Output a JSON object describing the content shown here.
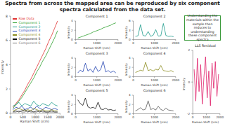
{
  "slide_title": "Spectra from across the mapped area can be reproduced by six component spectra calculated from the data set.",
  "callout": "Understanding the materials within the sample then reduces to understanding these component spectra",
  "chart_data": [
    {
      "type": "line",
      "x_label": "Raman Shift (/cm)",
      "y_label": "Intensity",
      "legend": "upper left",
      "grid": false,
      "x": [
        100,
        220,
        340,
        460,
        580,
        700,
        820,
        940,
        1060,
        1180,
        1300,
        1420,
        1540,
        1660,
        1780,
        1900
      ],
      "xlim": [
        0,
        2000
      ],
      "xticks": [
        0,
        500,
        1000,
        1500,
        2000
      ],
      "ylim": [
        0,
        8
      ],
      "yticks": [
        0,
        2,
        4,
        6,
        8
      ],
      "series": [
        {
          "name": "Raw Data",
          "color": "#e03030",
          "values": [
            0.5,
            0.8,
            1.1,
            1.5,
            1.9,
            2.4,
            2.8,
            3.3,
            3.8,
            4.3,
            4.8,
            5.3,
            5.9,
            6.4,
            7.0,
            7.6
          ]
        },
        {
          "name": "Component 1",
          "color": "#2ca02c",
          "values": [
            0.4,
            0.7,
            1.0,
            1.3,
            1.7,
            2.1,
            2.5,
            2.9,
            3.4,
            3.8,
            4.3,
            4.7,
            5.2,
            5.7,
            6.2,
            6.8
          ]
        },
        {
          "name": "Component 2",
          "color": "#1a9a8a",
          "values": [
            0.6,
            0.7,
            0.9,
            0.6,
            0.8,
            0.7,
            0.6,
            1.0,
            0.7,
            0.6,
            0.8,
            0.7,
            0.6,
            0.9,
            0.7,
            0.6
          ]
        },
        {
          "name": "Component 3",
          "color": "#2040b0",
          "values": [
            0.3,
            0.5,
            0.4,
            0.6,
            0.3,
            0.4,
            0.5,
            0.3,
            0.6,
            0.4,
            0.3,
            0.5,
            0.4,
            0.3,
            0.4,
            0.3
          ]
        },
        {
          "name": "Component 4",
          "color": "#8c8c1e",
          "values": [
            0.2,
            0.3,
            0.4,
            0.3,
            0.2,
            0.3,
            0.2,
            0.4,
            0.3,
            0.2,
            0.3,
            0.2,
            0.2,
            0.3,
            0.2,
            0.2
          ]
        },
        {
          "name": "Component 5",
          "color": "#111111",
          "values": [
            0.1,
            0.2,
            0.1,
            0.2,
            0.3,
            0.1,
            0.2,
            0.1,
            0.2,
            0.1,
            0.2,
            0.1,
            0.1,
            0.2,
            0.1,
            0.1
          ]
        },
        {
          "name": "Component 6",
          "color": "#777777",
          "values": [
            0.1,
            0.1,
            0.2,
            0.1,
            0.1,
            0.2,
            0.1,
            0.1,
            0.1,
            0.2,
            0.1,
            0.1,
            0.1,
            0.1,
            0.1,
            0.1
          ]
        }
      ]
    },
    {
      "type": "line",
      "title": "Component 1",
      "x_label": "Raman Shift (/cm)",
      "y_label": "Intensity",
      "color": "#2ca02c",
      "x": [
        100,
        220,
        340,
        460,
        580,
        700,
        820,
        940,
        1060,
        1180,
        1300,
        1420,
        1540,
        1660,
        1780,
        1900
      ],
      "values": [
        0.3,
        0.5,
        0.7,
        0.9,
        1.1,
        1.3,
        1.6,
        1.8,
        2.0,
        2.2,
        2.5,
        2.7,
        2.9,
        3.1,
        3.4,
        3.6
      ],
      "xlim": [
        0,
        2000
      ],
      "xticks": [
        0,
        1000,
        2000
      ],
      "ylim": [
        0,
        4
      ],
      "yticks": [
        0,
        2,
        4
      ]
    },
    {
      "type": "line",
      "title": "Component 2",
      "x_label": "Raman Shift (/cm)",
      "y_label": "Intensity",
      "color": "#1a9a8a",
      "x": [
        100,
        220,
        340,
        460,
        580,
        700,
        820,
        940,
        1060,
        1180,
        1300,
        1420,
        1540,
        1660,
        1780,
        1900
      ],
      "values": [
        1.0,
        1.2,
        4.8,
        1.3,
        1.1,
        2.6,
        1.0,
        1.4,
        3.2,
        1.1,
        1.2,
        5.2,
        1.3,
        1.0,
        1.1,
        0.9
      ],
      "xlim": [
        0,
        2000
      ],
      "xticks": [
        0,
        1000,
        2000
      ],
      "ylim": [
        0,
        6
      ],
      "yticks": [
        0,
        3,
        6
      ]
    },
    {
      "type": "line",
      "title": "Component 3",
      "x_label": "Raman Shift (/cm)",
      "y_label": "Intensity",
      "color": "#2040b0",
      "x": [
        100,
        220,
        340,
        460,
        580,
        700,
        820,
        940,
        1060,
        1180,
        1300,
        1420,
        1540,
        1660,
        1780,
        1900
      ],
      "values": [
        0.8,
        1.4,
        1.0,
        2.9,
        1.2,
        1.6,
        0.9,
        2.2,
        1.1,
        1.5,
        3.3,
        1.0,
        1.3,
        0.9,
        1.2,
        0.8
      ],
      "xlim": [
        0,
        2000
      ],
      "xticks": [
        0,
        1000,
        2000
      ],
      "ylim": [
        0,
        4
      ],
      "yticks": [
        0,
        2,
        4
      ]
    },
    {
      "type": "line",
      "title": "Component 4",
      "x_label": "Raman Shift (/cm)",
      "y_label": "Intensity",
      "color": "#8c8c1e",
      "x": [
        100,
        220,
        340,
        460,
        580,
        700,
        820,
        940,
        1060,
        1180,
        1300,
        1420,
        1540,
        1660,
        1780,
        1900
      ],
      "values": [
        0.9,
        1.1,
        1.4,
        1.2,
        3.1,
        1.3,
        1.5,
        1.2,
        1.6,
        1.4,
        2.4,
        1.3,
        1.2,
        1.1,
        1.3,
        1.0
      ],
      "xlim": [
        0,
        2000
      ],
      "xticks": [
        0,
        1000,
        2000
      ],
      "ylim": [
        0,
        4
      ],
      "yticks": [
        0,
        2,
        4
      ]
    },
    {
      "type": "line",
      "title": "Component 5",
      "x_label": "Raman Shift (/cm)",
      "y_label": "Intensity",
      "color": "#111111",
      "x": [
        100,
        220,
        340,
        460,
        580,
        700,
        820,
        940,
        1060,
        1180,
        1300,
        1420,
        1540,
        1660,
        1780,
        1900
      ],
      "values": [
        3.0,
        2.2,
        1.8,
        3.4,
        1.5,
        1.2,
        1.4,
        1.1,
        2.5,
        1.0,
        0.9,
        1.2,
        0.8,
        0.9,
        0.7,
        0.8
      ],
      "xlim": [
        0,
        2000
      ],
      "xticks": [
        0,
        1000,
        2000
      ],
      "ylim": [
        0,
        4
      ],
      "yticks": [
        0,
        2,
        4
      ]
    },
    {
      "type": "line",
      "title": "Component 6",
      "x_label": "Raman Shift (/cm)",
      "y_label": "Intensity",
      "color": "#555555",
      "x": [
        100,
        220,
        340,
        460,
        580,
        700,
        820,
        940,
        1060,
        1180,
        1300,
        1420,
        1540,
        1660,
        1780,
        1900
      ],
      "values": [
        0.6,
        0.9,
        1.3,
        0.8,
        1.0,
        2.8,
        0.9,
        1.1,
        0.8,
        1.6,
        0.9,
        0.7,
        1.2,
        0.8,
        0.7,
        0.6
      ],
      "xlim": [
        0,
        2000
      ],
      "xticks": [
        0,
        1000,
        2000
      ],
      "ylim": [
        0,
        4
      ],
      "yticks": [
        0,
        2,
        4
      ]
    },
    {
      "type": "line",
      "title": "LLS Residual",
      "x_label": "Raman Shift (/cm)",
      "y_label": "Intensity",
      "color": "#e0206a",
      "x": [
        100,
        220,
        340,
        460,
        580,
        700,
        820,
        940,
        1060,
        1180,
        1300,
        1420,
        1540,
        1660,
        1780,
        1900
      ],
      "values": [
        0.8,
        -1.2,
        1.5,
        -0.6,
        1.1,
        -1.4,
        0.3,
        1.6,
        -1.0,
        0.7,
        -1.5,
        1.2,
        -0.4,
        1.3,
        -0.9,
        0.5
      ],
      "xlim": [
        0,
        2000
      ],
      "xticks": [
        0,
        1000,
        2000
      ],
      "ylim": [
        -2,
        2
      ],
      "yticks": [
        -2,
        0,
        2
      ]
    }
  ]
}
